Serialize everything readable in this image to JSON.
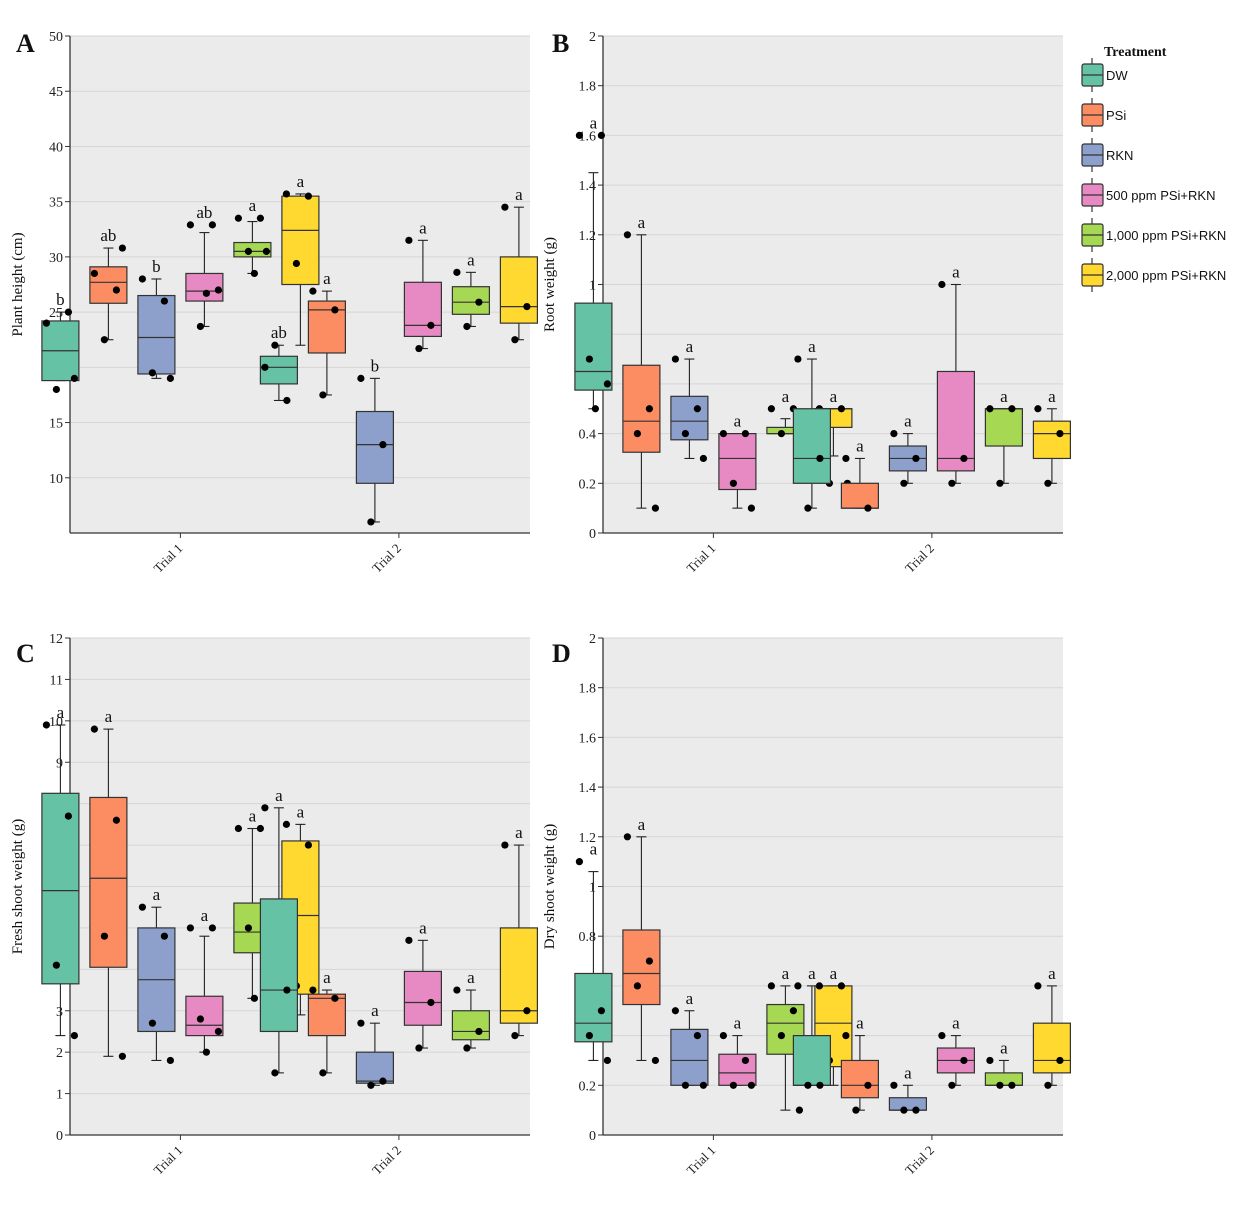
{
  "figure": {
    "legend": {
      "title": "Treatment",
      "items": [
        {
          "label": "DW",
          "color": "#66c2a5"
        },
        {
          "label": "PSi",
          "color": "#fc8d62"
        },
        {
          "label": "RKN",
          "color": "#8da0cb"
        },
        {
          "label": "500 ppm PSi+RKN",
          "color": "#e78ac3"
        },
        {
          "label": "1,000 ppm PSi+RKN",
          "color": "#a6d854"
        },
        {
          "label": "2,000 ppm PSi+RKN",
          "color": "#ffd92f"
        }
      ]
    }
  },
  "chart_data": [
    {
      "type": "box",
      "panel": "A",
      "title": "",
      "xlabel": "",
      "ylabel": "Plant height (cm)",
      "ylim": [
        5,
        50
      ],
      "yticks": [
        10,
        15,
        20,
        25,
        30,
        35,
        40,
        45,
        50
      ],
      "ytick_labels": [
        "10",
        "15",
        "20",
        "25",
        "30",
        "35",
        "40",
        "45",
        "50"
      ],
      "grid": true,
      "categories": [
        "Trial 1",
        "Trial 2"
      ],
      "groups": [
        [
          {
            "treatment": "DW",
            "whisker_low": 18.8,
            "q1": 18.8,
            "median": 21.5,
            "q3": 24.2,
            "whisker_high": 25,
            "points": [
              24,
              25,
              18,
              19
            ],
            "letter": "b"
          },
          {
            "treatment": "PSi",
            "whisker_low": 22.5,
            "q1": 25.8,
            "median": 27.7,
            "q3": 29.1,
            "whisker_high": 30.8,
            "points": [
              28.5,
              27,
              22.5,
              30.8
            ],
            "letter": "ab"
          },
          {
            "treatment": "RKN",
            "whisker_low": 19,
            "q1": 19.4,
            "median": 22.7,
            "q3": 26.5,
            "whisker_high": 28,
            "points": [
              28,
              26,
              19.5,
              19
            ],
            "letter": "b"
          },
          {
            "treatment": "500 ppm PSi+RKN",
            "whisker_low": 23.7,
            "q1": 26,
            "median": 26.9,
            "q3": 28.5,
            "whisker_high": 32.2,
            "points": [
              32.9,
              32.9,
              23.7,
              27,
              26.7
            ],
            "letter": "ab"
          },
          {
            "treatment": "1,000 ppm PSi+RKN",
            "whisker_low": 28.5,
            "q1": 30,
            "median": 30.5,
            "q3": 31.3,
            "whisker_high": 33.2,
            "points": [
              33.5,
              33.5,
              30.5,
              30.5,
              28.5
            ],
            "letter": "a"
          },
          {
            "treatment": "2,000 ppm PSi+RKN",
            "whisker_low": 22,
            "q1": 27.5,
            "median": 32.4,
            "q3": 35.5,
            "whisker_high": 35.7,
            "points": [
              35.7,
              35.5,
              29.4,
              22
            ],
            "letter": "a"
          }
        ],
        [
          {
            "treatment": "DW",
            "whisker_low": 17,
            "q1": 18.5,
            "median": 20,
            "q3": 21,
            "whisker_high": 22,
            "points": [
              20,
              17,
              22
            ],
            "letter": "ab"
          },
          {
            "treatment": "PSi",
            "whisker_low": 17.5,
            "q1": 21.3,
            "median": 25.2,
            "q3": 26,
            "whisker_high": 26.9,
            "points": [
              26.9,
              25.2,
              17.5
            ],
            "letter": "a"
          },
          {
            "treatment": "RKN",
            "whisker_low": 6,
            "q1": 9.5,
            "median": 13,
            "q3": 16,
            "whisker_high": 19,
            "points": [
              19,
              13,
              6
            ],
            "letter": "b"
          },
          {
            "treatment": "500 ppm PSi+RKN",
            "whisker_low": 21.7,
            "q1": 22.8,
            "median": 23.8,
            "q3": 27.7,
            "whisker_high": 31.5,
            "points": [
              31.5,
              23.8,
              21.7
            ],
            "letter": "a"
          },
          {
            "treatment": "1,000 ppm PSi+RKN",
            "whisker_low": 23.7,
            "q1": 24.8,
            "median": 25.9,
            "q3": 27.3,
            "whisker_high": 28.6,
            "points": [
              28.6,
              25.9,
              23.7
            ],
            "letter": "a"
          },
          {
            "treatment": "2,000 ppm PSi+RKN",
            "whisker_low": 22.5,
            "q1": 24,
            "median": 25.5,
            "q3": 30,
            "whisker_high": 34.5,
            "points": [
              34.5,
              25.5,
              22.5
            ],
            "letter": "a"
          }
        ]
      ]
    },
    {
      "type": "box",
      "panel": "B",
      "title": "",
      "xlabel": "",
      "ylabel": "Root weight (g)",
      "ylim": [
        0,
        2
      ],
      "yticks": [
        0,
        0.2,
        0.4,
        0.6,
        0.8,
        1,
        1.2,
        1.4,
        1.6,
        1.8,
        2
      ],
      "ytick_labels": [
        "0",
        "0.2",
        "0.4",
        "0.6",
        "0.8",
        "1",
        "1.2",
        "1.4",
        "1.6",
        "1.8",
        "2"
      ],
      "grid": true,
      "categories": [
        "Trial 1",
        "Trial 2"
      ],
      "groups": [
        [
          {
            "treatment": "DW",
            "whisker_low": 0.5,
            "q1": 0.575,
            "median": 0.65,
            "q3": 0.925,
            "whisker_high": 1.45,
            "points": [
              1.6,
              1.6,
              0.7,
              0.6,
              0.5
            ],
            "letter": "a"
          },
          {
            "treatment": "PSi",
            "whisker_low": 0.1,
            "q1": 0.325,
            "median": 0.45,
            "q3": 0.675,
            "whisker_high": 1.2,
            "points": [
              1.2,
              0.5,
              0.4,
              0.1
            ],
            "letter": "a"
          },
          {
            "treatment": "RKN",
            "whisker_low": 0.3,
            "q1": 0.375,
            "median": 0.45,
            "q3": 0.55,
            "whisker_high": 0.7,
            "points": [
              0.7,
              0.5,
              0.4,
              0.3
            ],
            "letter": "a"
          },
          {
            "treatment": "500 ppm PSi+RKN",
            "whisker_low": 0.1,
            "q1": 0.175,
            "median": 0.3,
            "q3": 0.4,
            "whisker_high": 0.4,
            "points": [
              0.4,
              0.4,
              0.2,
              0.1
            ],
            "letter": "a"
          },
          {
            "treatment": "1,000 ppm PSi+RKN",
            "whisker_low": 0.4,
            "q1": 0.4,
            "median": 0.4,
            "q3": 0.425,
            "whisker_high": 0.46,
            "points": [
              0.5,
              0.5,
              0.4,
              0.4
            ],
            "letter": "a"
          },
          {
            "treatment": "2,000 ppm PSi+RKN",
            "whisker_low": 0.31,
            "q1": 0.425,
            "median": 0.5,
            "q3": 0.5,
            "whisker_high": 0.5,
            "points": [
              0.5,
              0.5,
              0.2,
              0.2
            ],
            "letter": "a"
          }
        ],
        [
          {
            "treatment": "DW",
            "whisker_low": 0.1,
            "q1": 0.2,
            "median": 0.3,
            "q3": 0.5,
            "whisker_high": 0.7,
            "points": [
              0.7,
              0.3,
              0.1
            ],
            "letter": "a"
          },
          {
            "treatment": "PSi",
            "whisker_low": 0.1,
            "q1": 0.1,
            "median": 0.1,
            "q3": 0.2,
            "whisker_high": 0.3,
            "points": [
              0.3,
              0.1
            ],
            "letter": "a"
          },
          {
            "treatment": "RKN",
            "whisker_low": 0.2,
            "q1": 0.25,
            "median": 0.3,
            "q3": 0.35,
            "whisker_high": 0.4,
            "points": [
              0.4,
              0.3,
              0.2
            ],
            "letter": "a"
          },
          {
            "treatment": "500 ppm PSi+RKN",
            "whisker_low": 0.2,
            "q1": 0.25,
            "median": 0.3,
            "q3": 0.65,
            "whisker_high": 1.0,
            "points": [
              1.0,
              0.3,
              0.2
            ],
            "letter": "a"
          },
          {
            "treatment": "1,000 ppm PSi+RKN",
            "whisker_low": 0.2,
            "q1": 0.35,
            "median": 0.5,
            "q3": 0.5,
            "whisker_high": 0.5,
            "points": [
              0.5,
              0.5,
              0.2
            ],
            "letter": "a"
          },
          {
            "treatment": "2,000 ppm PSi+RKN",
            "whisker_low": 0.2,
            "q1": 0.3,
            "median": 0.4,
            "q3": 0.45,
            "whisker_high": 0.5,
            "points": [
              0.5,
              0.4,
              0.2
            ],
            "letter": "a"
          }
        ]
      ]
    },
    {
      "type": "box",
      "panel": "C",
      "title": "",
      "xlabel": "",
      "ylabel": "Fresh shoot weight (g)",
      "ylim": [
        0,
        12
      ],
      "yticks": [
        0,
        1,
        2,
        3,
        4,
        5,
        6,
        7,
        8,
        9,
        10,
        11,
        12
      ],
      "ytick_labels": [
        "0",
        "1",
        "2",
        "3",
        "4",
        "5",
        "6",
        "7",
        "8",
        "9",
        "10",
        "11",
        "12"
      ],
      "grid": true,
      "categories": [
        "Trial 1",
        "Trial 2"
      ],
      "groups": [
        [
          {
            "treatment": "DW",
            "whisker_low": 2.4,
            "q1": 3.65,
            "median": 5.9,
            "q3": 8.25,
            "whisker_high": 9.9,
            "points": [
              9.9,
              7.7,
              4.1,
              2.4
            ],
            "letter": "a"
          },
          {
            "treatment": "PSi",
            "whisker_low": 1.9,
            "q1": 4.05,
            "median": 6.2,
            "q3": 8.15,
            "whisker_high": 9.8,
            "points": [
              9.8,
              7.6,
              4.8,
              1.9
            ],
            "letter": "a"
          },
          {
            "treatment": "RKN",
            "whisker_low": 1.8,
            "q1": 2.5,
            "median": 3.75,
            "q3": 5.0,
            "whisker_high": 5.5,
            "points": [
              5.5,
              4.8,
              2.7,
              1.8
            ],
            "letter": "a"
          },
          {
            "treatment": "500 ppm PSi+RKN",
            "whisker_low": 2.0,
            "q1": 2.4,
            "median": 2.65,
            "q3": 3.35,
            "whisker_high": 4.8,
            "points": [
              5.0,
              5.0,
              2.8,
              2.5,
              2.0
            ],
            "letter": "a"
          },
          {
            "treatment": "1,000 ppm PSi+RKN",
            "whisker_low": 3.3,
            "q1": 4.4,
            "median": 4.9,
            "q3": 5.6,
            "whisker_high": 7.4,
            "points": [
              7.4,
              7.4,
              5.0,
              4.8,
              3.3
            ],
            "letter": "a"
          },
          {
            "treatment": "2,000 ppm PSi+RKN",
            "whisker_low": 2.9,
            "q1": 3.4,
            "median": 5.3,
            "q3": 7.1,
            "whisker_high": 7.5,
            "points": [
              7.5,
              7.0,
              3.6,
              2.9
            ],
            "letter": "a"
          }
        ],
        [
          {
            "treatment": "DW",
            "whisker_low": 1.5,
            "q1": 2.5,
            "median": 3.5,
            "q3": 5.7,
            "whisker_high": 7.9,
            "points": [
              7.9,
              3.5,
              1.5
            ],
            "letter": "a"
          },
          {
            "treatment": "PSi",
            "whisker_low": 1.5,
            "q1": 2.4,
            "median": 3.3,
            "q3": 3.4,
            "whisker_high": 3.5,
            "points": [
              3.5,
              3.3,
              1.5
            ],
            "letter": "a"
          },
          {
            "treatment": "RKN",
            "whisker_low": 1.2,
            "q1": 1.25,
            "median": 1.3,
            "q3": 2.0,
            "whisker_high": 2.7,
            "points": [
              2.7,
              1.3,
              1.2
            ],
            "letter": "a"
          },
          {
            "treatment": "500 ppm PSi+RKN",
            "whisker_low": 2.1,
            "q1": 2.65,
            "median": 3.2,
            "q3": 3.95,
            "whisker_high": 4.7,
            "points": [
              4.7,
              3.2,
              2.1
            ],
            "letter": "a"
          },
          {
            "treatment": "1,000 ppm PSi+RKN",
            "whisker_low": 2.1,
            "q1": 2.3,
            "median": 2.5,
            "q3": 3.0,
            "whisker_high": 3.5,
            "points": [
              3.5,
              2.5,
              2.1
            ],
            "letter": "a"
          },
          {
            "treatment": "2,000 ppm PSi+RKN",
            "whisker_low": 2.4,
            "q1": 2.7,
            "median": 3.0,
            "q3": 5.0,
            "whisker_high": 7.0,
            "points": [
              7.0,
              3.0,
              2.4
            ],
            "letter": "a"
          }
        ]
      ]
    },
    {
      "type": "box",
      "panel": "D",
      "title": "",
      "xlabel": "",
      "ylabel": "Dry shoot weight (g)",
      "ylim": [
        0,
        2
      ],
      "yticks": [
        0,
        0.2,
        0.4,
        0.6,
        0.8,
        1,
        1.2,
        1.4,
        1.6,
        1.8,
        2
      ],
      "ytick_labels": [
        "0",
        "0.2",
        "0.4",
        "0.6",
        "0.8",
        "1",
        "1.2",
        "1.4",
        "1.6",
        "1.8",
        "2"
      ],
      "grid": true,
      "categories": [
        "Trial 1",
        "Trial 2"
      ],
      "groups": [
        [
          {
            "treatment": "DW",
            "whisker_low": 0.3,
            "q1": 0.375,
            "median": 0.45,
            "q3": 0.65,
            "whisker_high": 1.06,
            "points": [
              1.1,
              0.5,
              0.4,
              0.3
            ],
            "letter": "a"
          },
          {
            "treatment": "PSi",
            "whisker_low": 0.3,
            "q1": 0.525,
            "median": 0.65,
            "q3": 0.825,
            "whisker_high": 1.2,
            "points": [
              1.2,
              0.7,
              0.6,
              0.3
            ],
            "letter": "a"
          },
          {
            "treatment": "RKN",
            "whisker_low": 0.2,
            "q1": 0.2,
            "median": 0.3,
            "q3": 0.425,
            "whisker_high": 0.5,
            "points": [
              0.5,
              0.4,
              0.2,
              0.2
            ],
            "letter": "a"
          },
          {
            "treatment": "500 ppm PSi+RKN",
            "whisker_low": 0.2,
            "q1": 0.2,
            "median": 0.25,
            "q3": 0.325,
            "whisker_high": 0.4,
            "points": [
              0.4,
              0.3,
              0.2,
              0.2
            ],
            "letter": "a"
          },
          {
            "treatment": "1,000 ppm PSi+RKN",
            "whisker_low": 0.1,
            "q1": 0.325,
            "median": 0.45,
            "q3": 0.525,
            "whisker_high": 0.6,
            "points": [
              0.6,
              0.5,
              0.4,
              0.1
            ],
            "letter": "a"
          },
          {
            "treatment": "2,000 ppm PSi+RKN",
            "whisker_low": 0.2,
            "q1": 0.275,
            "median": 0.45,
            "q3": 0.6,
            "whisker_high": 0.6,
            "points": [
              0.6,
              0.6,
              0.3,
              0.2
            ],
            "letter": "a"
          }
        ],
        [
          {
            "treatment": "DW",
            "whisker_low": 0.2,
            "q1": 0.2,
            "median": 0.2,
            "q3": 0.4,
            "whisker_high": 0.6,
            "points": [
              0.6,
              0.2,
              0.2
            ],
            "letter": "a"
          },
          {
            "treatment": "PSi",
            "whisker_low": 0.1,
            "q1": 0.15,
            "median": 0.2,
            "q3": 0.3,
            "whisker_high": 0.4,
            "points": [
              0.4,
              0.2,
              0.1
            ],
            "letter": "a"
          },
          {
            "treatment": "RKN",
            "whisker_low": 0.1,
            "q1": 0.1,
            "median": 0.1,
            "q3": 0.15,
            "whisker_high": 0.2,
            "points": [
              0.2,
              0.1,
              0.1
            ],
            "letter": "a"
          },
          {
            "treatment": "500 ppm PSi+RKN",
            "whisker_low": 0.2,
            "q1": 0.25,
            "median": 0.3,
            "q3": 0.35,
            "whisker_high": 0.4,
            "points": [
              0.4,
              0.3,
              0.2
            ],
            "letter": "a"
          },
          {
            "treatment": "1,000 ppm PSi+RKN",
            "whisker_low": 0.2,
            "q1": 0.2,
            "median": 0.2,
            "q3": 0.25,
            "whisker_high": 0.3,
            "points": [
              0.3,
              0.2,
              0.2
            ],
            "letter": "a"
          },
          {
            "treatment": "2,000 ppm PSi+RKN",
            "whisker_low": 0.2,
            "q1": 0.25,
            "median": 0.3,
            "q3": 0.45,
            "whisker_high": 0.6,
            "points": [
              0.6,
              0.3,
              0.2
            ],
            "letter": "a"
          }
        ]
      ]
    }
  ]
}
